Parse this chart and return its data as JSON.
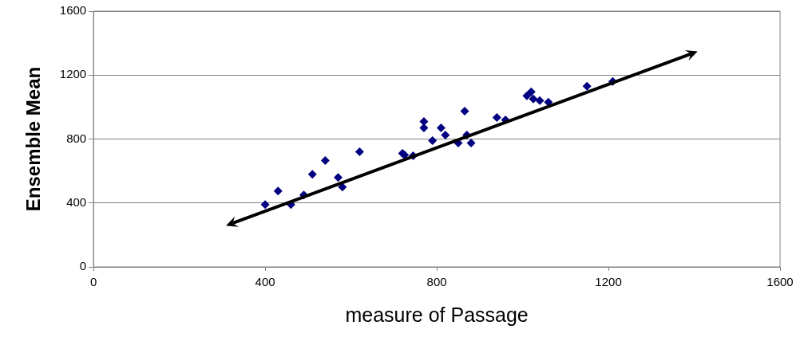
{
  "chart_data": {
    "type": "scatter",
    "xlabel": "measure of Passage",
    "ylabel": "Ensemble Mean",
    "xlim": [
      0,
      1600
    ],
    "xticks": [
      0,
      400,
      800,
      1200,
      1600
    ],
    "ylim": [
      0,
      1600
    ],
    "yticks": [
      0,
      400,
      800,
      1200,
      1600
    ],
    "grid": "y",
    "marker": "diamond",
    "series": [
      {
        "color": "#000080",
        "x": [
          400,
          430,
          460,
          490,
          510,
          540,
          570,
          580,
          620,
          720,
          725,
          745,
          770,
          770,
          790,
          810,
          820,
          850,
          865,
          870,
          880,
          940,
          960,
          1010,
          1020,
          1025,
          1040,
          1060,
          1150,
          1210
        ],
        "values": [
          390,
          475,
          390,
          450,
          580,
          665,
          560,
          500,
          720,
          710,
          700,
          695,
          910,
          870,
          790,
          870,
          825,
          775,
          975,
          825,
          775,
          935,
          920,
          1070,
          1095,
          1050,
          1040,
          1030,
          1130,
          1160
        ]
      }
    ]
  }
}
